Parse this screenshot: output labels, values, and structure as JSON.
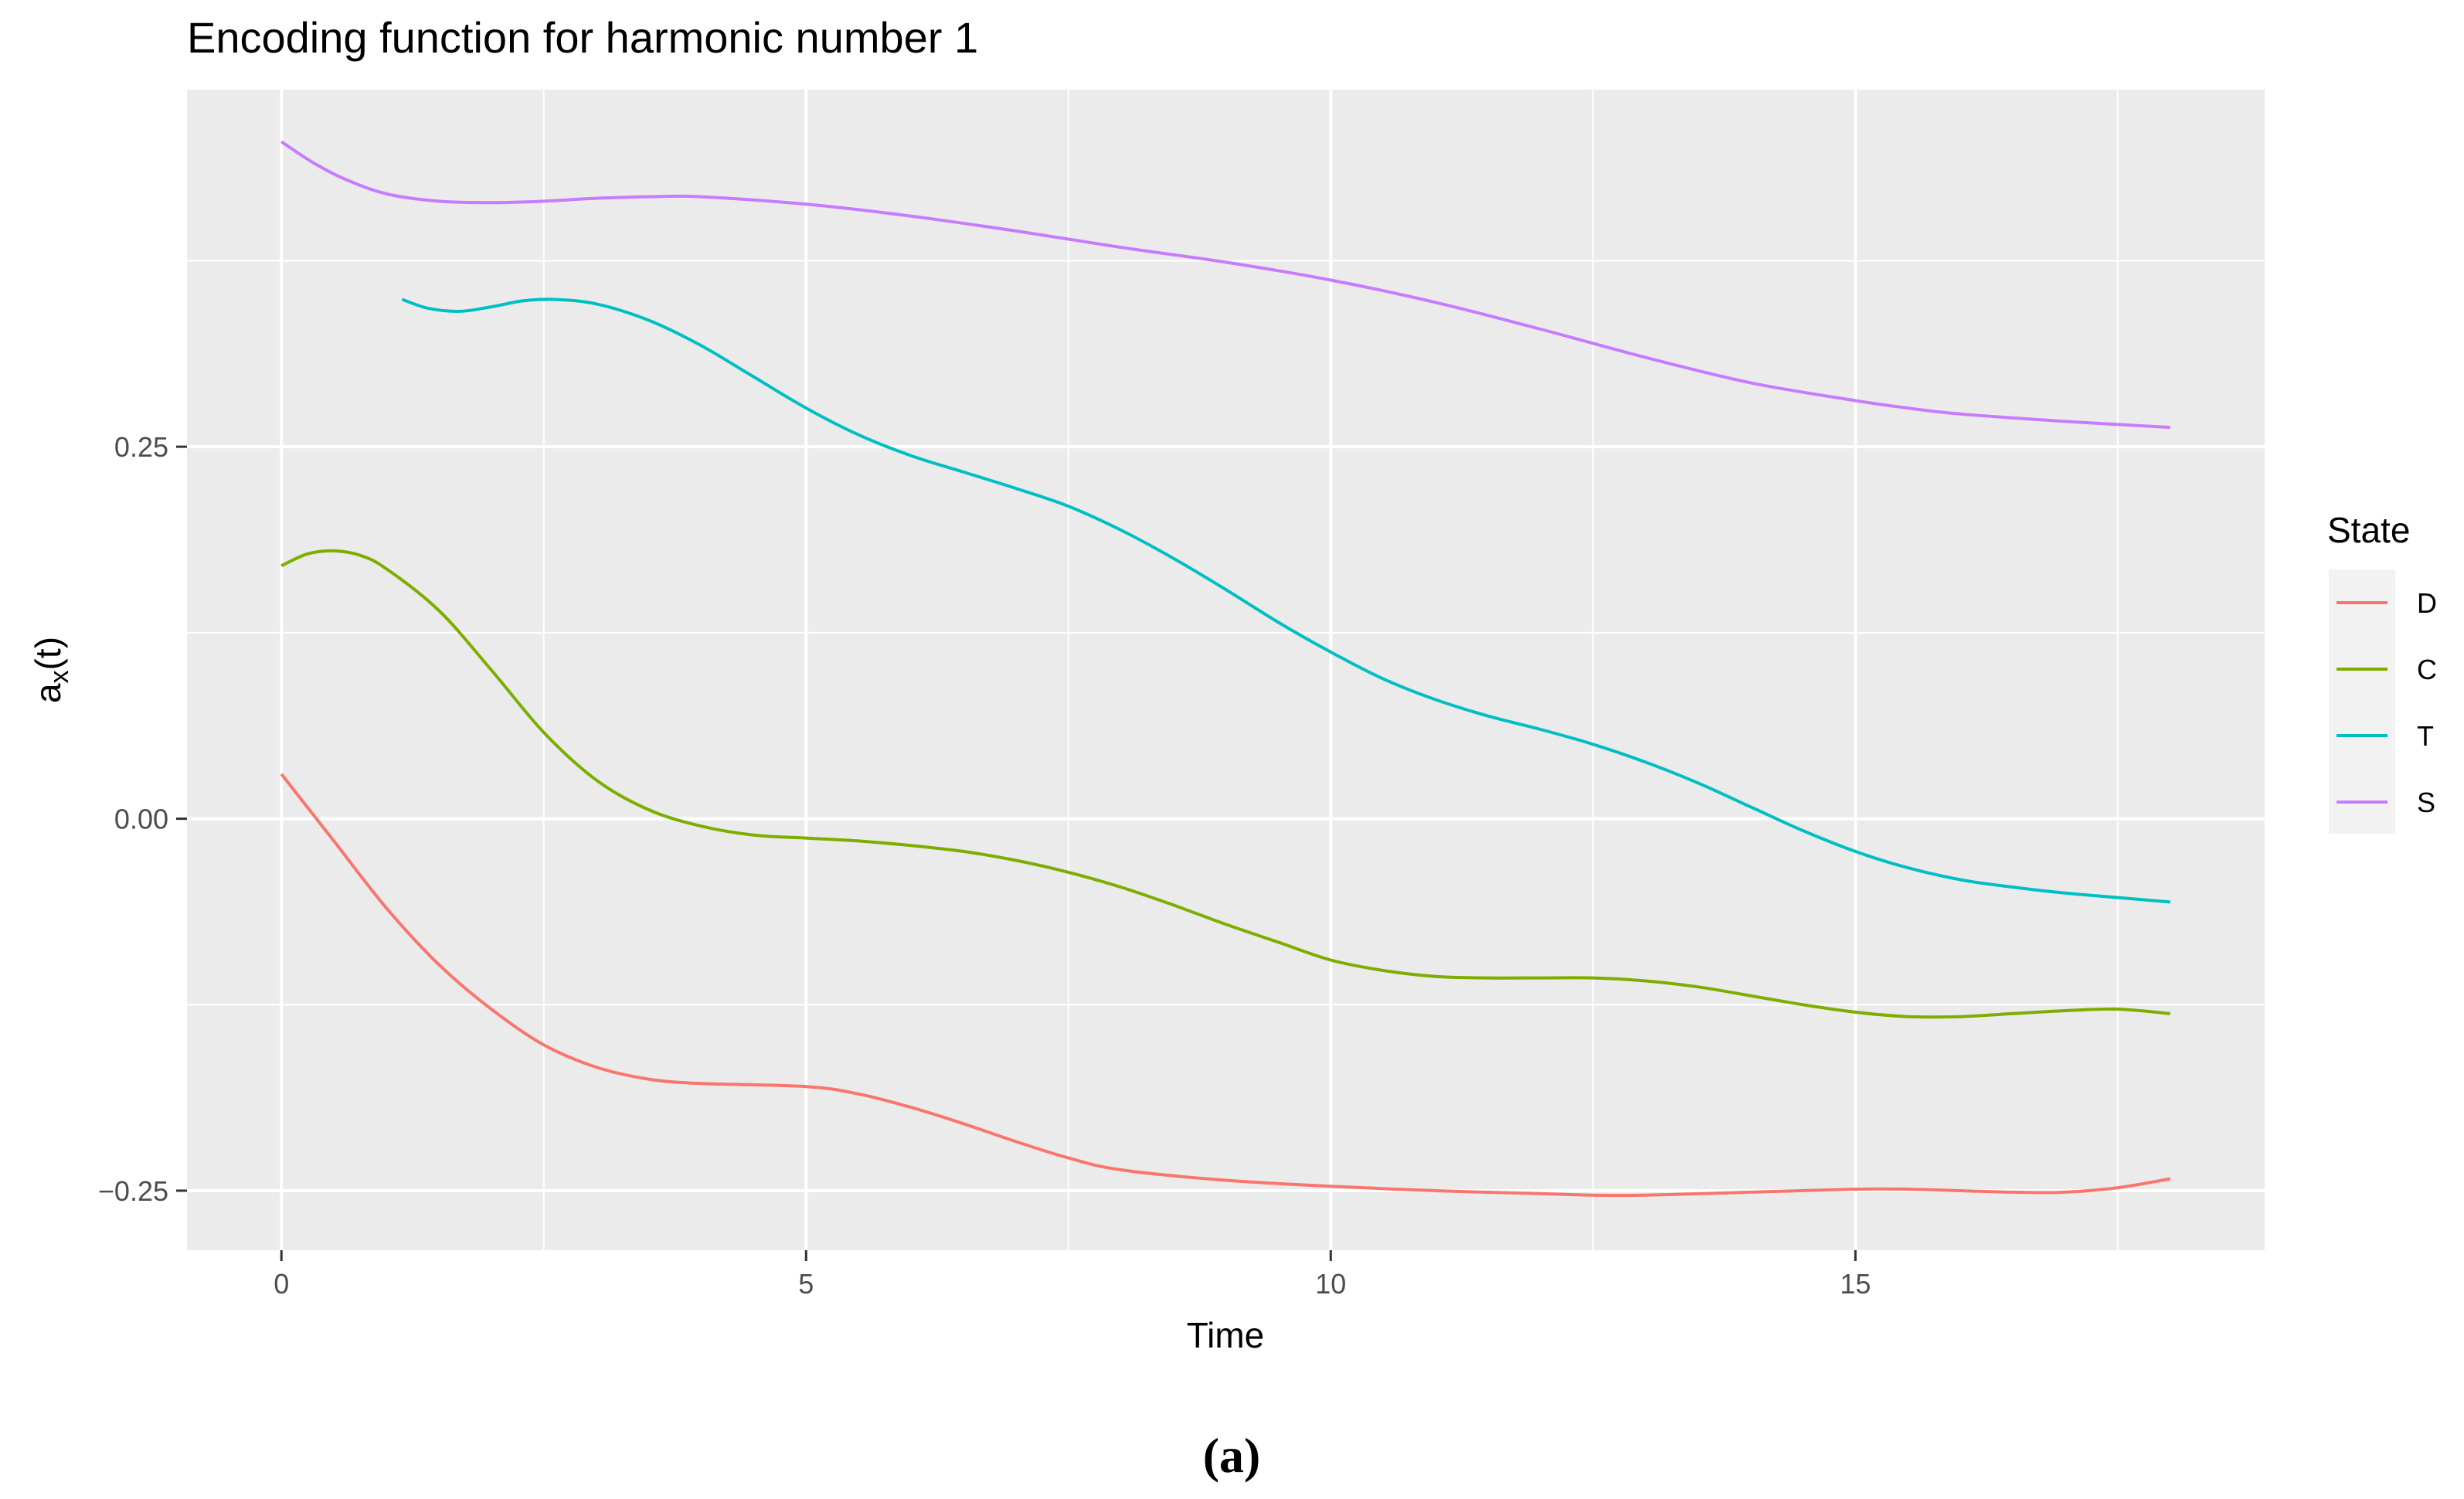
{
  "chart_data": {
    "type": "line",
    "title": "Encoding function for harmonic number 1",
    "xlabel": "Time",
    "ylabel": "a",
    "ylabel_sub": "x",
    "ylabel_suffix": "(t)",
    "xlim": [
      -0.9,
      18.9
    ],
    "ylim": [
      -0.29,
      0.49
    ],
    "x_ticks": [
      0,
      5,
      10,
      15
    ],
    "x_tick_labels": [
      "0",
      "5",
      "10",
      "15"
    ],
    "y_ticks": [
      -0.25,
      0,
      0.25
    ],
    "y_tick_labels": [
      "−0.25",
      "0.00",
      "0.25"
    ],
    "grid": true,
    "legend": {
      "title": "State",
      "position": "right"
    },
    "caption": "(a)",
    "series": [
      {
        "name": "D",
        "color": "#F8766D",
        "x": [
          0,
          0.5,
          1,
          1.5,
          2,
          2.5,
          3,
          3.5,
          4,
          5,
          5.5,
          6,
          6.5,
          7,
          7.5,
          8,
          9,
          10,
          11,
          12,
          12.5,
          13,
          14,
          15,
          15.5,
          16,
          16.5,
          17,
          17.5,
          18
        ],
        "y": [
          0.03,
          -0.015,
          -0.06,
          -0.098,
          -0.128,
          -0.152,
          -0.167,
          -0.175,
          -0.178,
          -0.18,
          -0.185,
          -0.194,
          -0.205,
          -0.217,
          -0.228,
          -0.236,
          -0.243,
          -0.247,
          -0.25,
          -0.252,
          -0.253,
          -0.253,
          -0.251,
          -0.249,
          -0.249,
          -0.25,
          -0.251,
          -0.251,
          -0.248,
          -0.242
        ]
      },
      {
        "name": "C",
        "color": "#7CAE00",
        "x": [
          0,
          0.25,
          0.5,
          0.75,
          1,
          1.5,
          2,
          2.5,
          3,
          3.5,
          4,
          4.5,
          5,
          5.5,
          6,
          6.5,
          7,
          7.5,
          8,
          8.5,
          9,
          9.5,
          10,
          10.5,
          11,
          11.5,
          12,
          12.5,
          13,
          13.5,
          14,
          14.5,
          15,
          15.5,
          16,
          16.5,
          17,
          17.5,
          18
        ],
        "y": [
          0.17,
          0.178,
          0.18,
          0.177,
          0.168,
          0.14,
          0.1,
          0.058,
          0.026,
          0.006,
          -0.005,
          -0.011,
          -0.013,
          -0.015,
          -0.018,
          -0.022,
          -0.028,
          -0.036,
          -0.046,
          -0.058,
          -0.071,
          -0.083,
          -0.095,
          -0.102,
          -0.106,
          -0.107,
          -0.107,
          -0.107,
          -0.109,
          -0.113,
          -0.119,
          -0.125,
          -0.13,
          -0.133,
          -0.133,
          -0.131,
          -0.129,
          -0.128,
          -0.131
        ]
      },
      {
        "name": "T",
        "color": "#00BFC4",
        "x": [
          1.15,
          1.4,
          1.7,
          2,
          2.3,
          2.6,
          3,
          3.5,
          4,
          4.5,
          5,
          5.5,
          6,
          6.5,
          7,
          7.5,
          8,
          8.5,
          9,
          9.5,
          10,
          10.5,
          11,
          11.5,
          12,
          12.5,
          13,
          13.5,
          14,
          14.5,
          15,
          15.5,
          16,
          16.5,
          17,
          17.5,
          18
        ],
        "y": [
          0.349,
          0.343,
          0.341,
          0.344,
          0.348,
          0.349,
          0.346,
          0.335,
          0.318,
          0.297,
          0.276,
          0.258,
          0.244,
          0.233,
          0.222,
          0.21,
          0.194,
          0.175,
          0.154,
          0.132,
          0.112,
          0.094,
          0.08,
          0.069,
          0.06,
          0.05,
          0.038,
          0.024,
          0.008,
          -0.008,
          -0.022,
          -0.033,
          -0.041,
          -0.046,
          -0.05,
          -0.053,
          -0.056
        ]
      },
      {
        "name": "S",
        "color": "#C77CFF",
        "x": [
          0,
          0.3,
          0.6,
          1,
          1.5,
          2,
          2.5,
          3,
          3.5,
          4,
          5,
          6,
          7,
          8,
          9,
          10,
          11,
          12,
          13,
          14,
          15,
          15.5,
          16,
          17,
          18
        ],
        "y": [
          0.455,
          0.441,
          0.43,
          0.42,
          0.415,
          0.414,
          0.415,
          0.417,
          0.418,
          0.418,
          0.413,
          0.405,
          0.395,
          0.384,
          0.374,
          0.362,
          0.347,
          0.329,
          0.31,
          0.293,
          0.281,
          0.276,
          0.272,
          0.267,
          0.263
        ]
      }
    ]
  }
}
